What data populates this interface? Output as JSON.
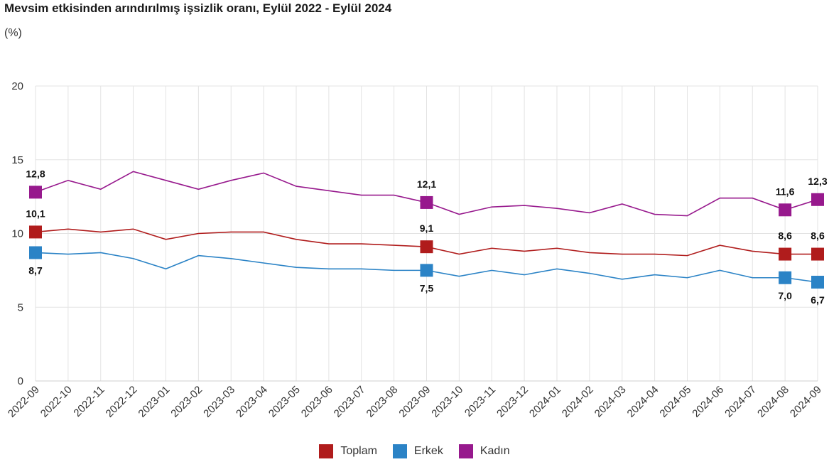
{
  "title": "Mevsim etkisinden arındırılmış işsizlik oranı, Eylül 2022 - Eylül 2024",
  "subtitle": "(%)",
  "chart_data": {
    "type": "line",
    "title": "Mevsim etkisinden arındırılmış işsizlik oranı, Eylül 2022 - Eylül 2024",
    "ylabel": "(%)",
    "ylim": [
      0,
      20
    ],
    "yticks": [
      0,
      5,
      10,
      15,
      20
    ],
    "grid": true,
    "legend_position": "bottom",
    "categories": [
      "2022-09",
      "2022-10",
      "2022-11",
      "2022-12",
      "2023-01",
      "2023-02",
      "2023-03",
      "2023-04",
      "2023-05",
      "2023-06",
      "2023-07",
      "2023-08",
      "2023-09",
      "2023-10",
      "2023-11",
      "2023-12",
      "2024-01",
      "2024-02",
      "2024-03",
      "2024-04",
      "2024-05",
      "2024-06",
      "2024-07",
      "2024-08",
      "2024-09"
    ],
    "series": [
      {
        "name": "Toplam",
        "color": "#b01c1c",
        "values": [
          10.1,
          10.3,
          10.1,
          10.3,
          9.6,
          10.0,
          10.1,
          10.1,
          9.6,
          9.3,
          9.3,
          9.2,
          9.1,
          8.6,
          9.0,
          8.8,
          9.0,
          8.7,
          8.6,
          8.6,
          8.5,
          9.2,
          8.8,
          8.6,
          8.6
        ],
        "labeled_points": [
          {
            "index": 0,
            "label": "10,1",
            "position": "above"
          },
          {
            "index": 12,
            "label": "9,1",
            "position": "above"
          },
          {
            "index": 23,
            "label": "8,6",
            "position": "above"
          },
          {
            "index": 24,
            "label": "8,6",
            "position": "above"
          }
        ]
      },
      {
        "name": "Erkek",
        "color": "#2b83c6",
        "values": [
          8.7,
          8.6,
          8.7,
          8.3,
          7.6,
          8.5,
          8.3,
          8.0,
          7.7,
          7.6,
          7.6,
          7.5,
          7.5,
          7.1,
          7.5,
          7.2,
          7.6,
          7.3,
          6.9,
          7.2,
          7.0,
          7.5,
          7.0,
          7.0,
          6.7
        ],
        "labeled_points": [
          {
            "index": 0,
            "label": "8,7",
            "position": "below"
          },
          {
            "index": 12,
            "label": "7,5",
            "position": "below"
          },
          {
            "index": 23,
            "label": "7,0",
            "position": "below"
          },
          {
            "index": 24,
            "label": "6,7",
            "position": "below"
          }
        ]
      },
      {
        "name": "Kadın",
        "color": "#97198d",
        "values": [
          12.8,
          13.6,
          13.0,
          14.2,
          13.6,
          13.0,
          13.6,
          14.1,
          13.2,
          12.9,
          12.6,
          12.6,
          12.1,
          11.3,
          11.8,
          11.9,
          11.7,
          11.4,
          12.0,
          11.3,
          11.2,
          12.4,
          12.4,
          11.6,
          12.3
        ],
        "labeled_points": [
          {
            "index": 0,
            "label": "12,8",
            "position": "above"
          },
          {
            "index": 12,
            "label": "12,1",
            "position": "above"
          },
          {
            "index": 23,
            "label": "11,6",
            "position": "above"
          },
          {
            "index": 24,
            "label": "12,3",
            "position": "above"
          }
        ]
      }
    ]
  }
}
